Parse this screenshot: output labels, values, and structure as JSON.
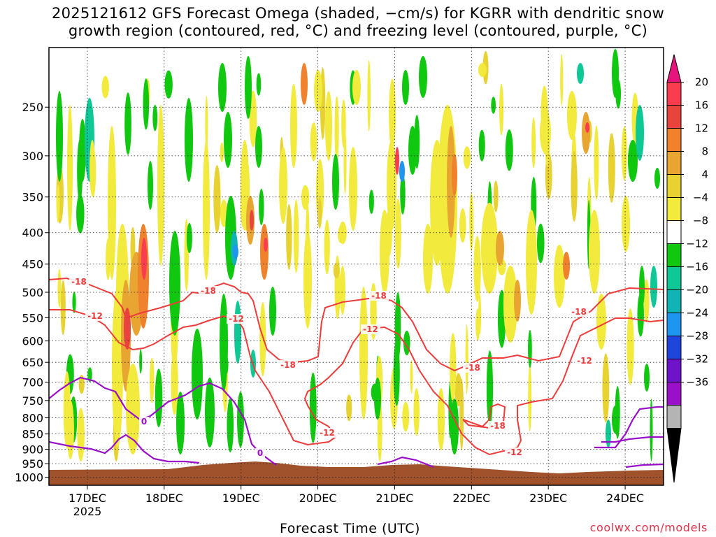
{
  "chart_data": {
    "type": "heatmap",
    "title_line1": "2025121612 GFS Forecast Omega (shaded, −cm/s) for KGRR with dendritic snow",
    "title_line2": "growth region (contoured, red, °C) and freezing level (contoured, purple, °C)",
    "xlabel": "Forecast Time (UTC)",
    "ylabel": "",
    "x_ticks": [
      "17DEC",
      "18DEC",
      "19DEC",
      "20DEC",
      "21DEC",
      "22DEC",
      "23DEC",
      "24DEC"
    ],
    "x_year_label": "2025",
    "x_range_hours": [
      -12,
      180
    ],
    "y_ticks": [
      "250",
      "300",
      "350",
      "400",
      "450",
      "500",
      "550",
      "600",
      "650",
      "700",
      "750",
      "800",
      "850",
      "900",
      "950",
      "1000"
    ],
    "y_range_hpa": [
      200,
      1030
    ],
    "colorbar_labels": [
      "20",
      "16",
      "12",
      "8",
      "4",
      "−4",
      "−8",
      "−12",
      "−16",
      "−20",
      "−24",
      "−28",
      "−32",
      "−36"
    ],
    "colorbar_colors": [
      "#fa3c50",
      "#e8443c",
      "#f0822d",
      "#e8a532",
      "#e8d232",
      "#f2ea3c",
      "#ffffff",
      "#10c810",
      "#10c896",
      "#10b4b4",
      "#1e96f0",
      "#1e46dc",
      "#6e14c8",
      "#9a10c8",
      "#b4b4b4"
    ],
    "contours": {
      "dgz_red": {
        "levels": [
          -18,
          -12
        ],
        "labels": [
          "-18",
          "-12"
        ]
      },
      "freezing_purple": {
        "levels": [
          0
        ],
        "labels": [
          "0"
        ]
      }
    },
    "terrain_color": "#a0522d"
  },
  "credit": "coolwx.com/models"
}
